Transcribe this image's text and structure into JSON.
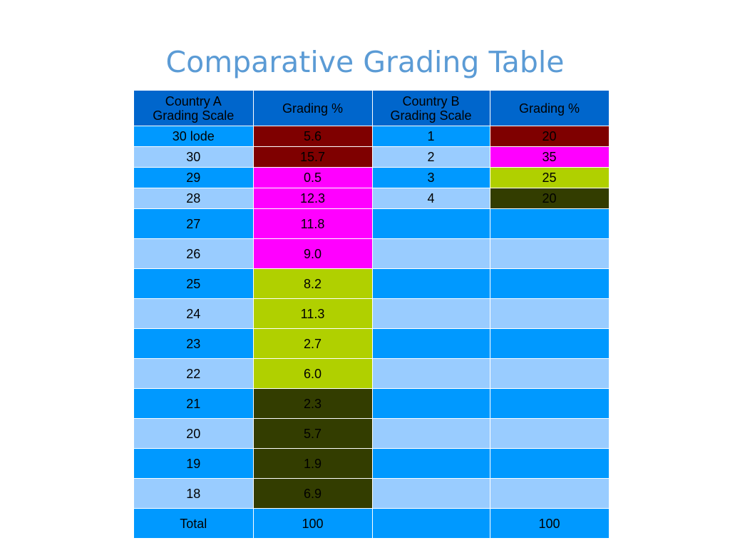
{
  "title": "Comparative Grading Table",
  "colors": {
    "title": "#5b9bd5",
    "header": "#0066cc",
    "stripe_dark": "#0099ff",
    "stripe_light": "#99ccff",
    "band_maroon": "#7f0000",
    "band_magenta": "#ff00ff",
    "band_lime": "#b0d000",
    "band_olive": "#333d00"
  },
  "table": {
    "headers": {
      "a_scale_line1": "Country A",
      "a_scale_line2": "Grading Scale",
      "a_pct": "Grading %",
      "b_scale_line1": "Country B",
      "b_scale_line2": "Grading Scale",
      "b_pct": "Grading %"
    },
    "rows": [
      {
        "a_grade": "30 lode",
        "a_pct": "5.6",
        "b_grade": "1",
        "b_pct": "20"
      },
      {
        "a_grade": "30",
        "a_pct": "15.7",
        "b_grade": "2",
        "b_pct": "35"
      },
      {
        "a_grade": "29",
        "a_pct": "0.5",
        "b_grade": "3",
        "b_pct": "25"
      },
      {
        "a_grade": "28",
        "a_pct": "12.3",
        "b_grade": "4",
        "b_pct": "20"
      },
      {
        "a_grade": "27",
        "a_pct": "11.8",
        "b_grade": "",
        "b_pct": ""
      },
      {
        "a_grade": "26",
        "a_pct": "9.0",
        "b_grade": "",
        "b_pct": ""
      },
      {
        "a_grade": "25",
        "a_pct": "8.2",
        "b_grade": "",
        "b_pct": ""
      },
      {
        "a_grade": "24",
        "a_pct": "11.3",
        "b_grade": "",
        "b_pct": ""
      },
      {
        "a_grade": "23",
        "a_pct": "2.7",
        "b_grade": "",
        "b_pct": ""
      },
      {
        "a_grade": "22",
        "a_pct": "6.0",
        "b_grade": "",
        "b_pct": ""
      },
      {
        "a_grade": "21",
        "a_pct": "2.3",
        "b_grade": "",
        "b_pct": ""
      },
      {
        "a_grade": "20",
        "a_pct": "5.7",
        "b_grade": "",
        "b_pct": ""
      },
      {
        "a_grade": "19",
        "a_pct": "1.9",
        "b_grade": "",
        "b_pct": ""
      },
      {
        "a_grade": "18",
        "a_pct": "6.9",
        "b_grade": "",
        "b_pct": ""
      }
    ],
    "total": {
      "label": "Total",
      "a_pct": "100",
      "b_grade": "",
      "b_pct": "100"
    }
  }
}
